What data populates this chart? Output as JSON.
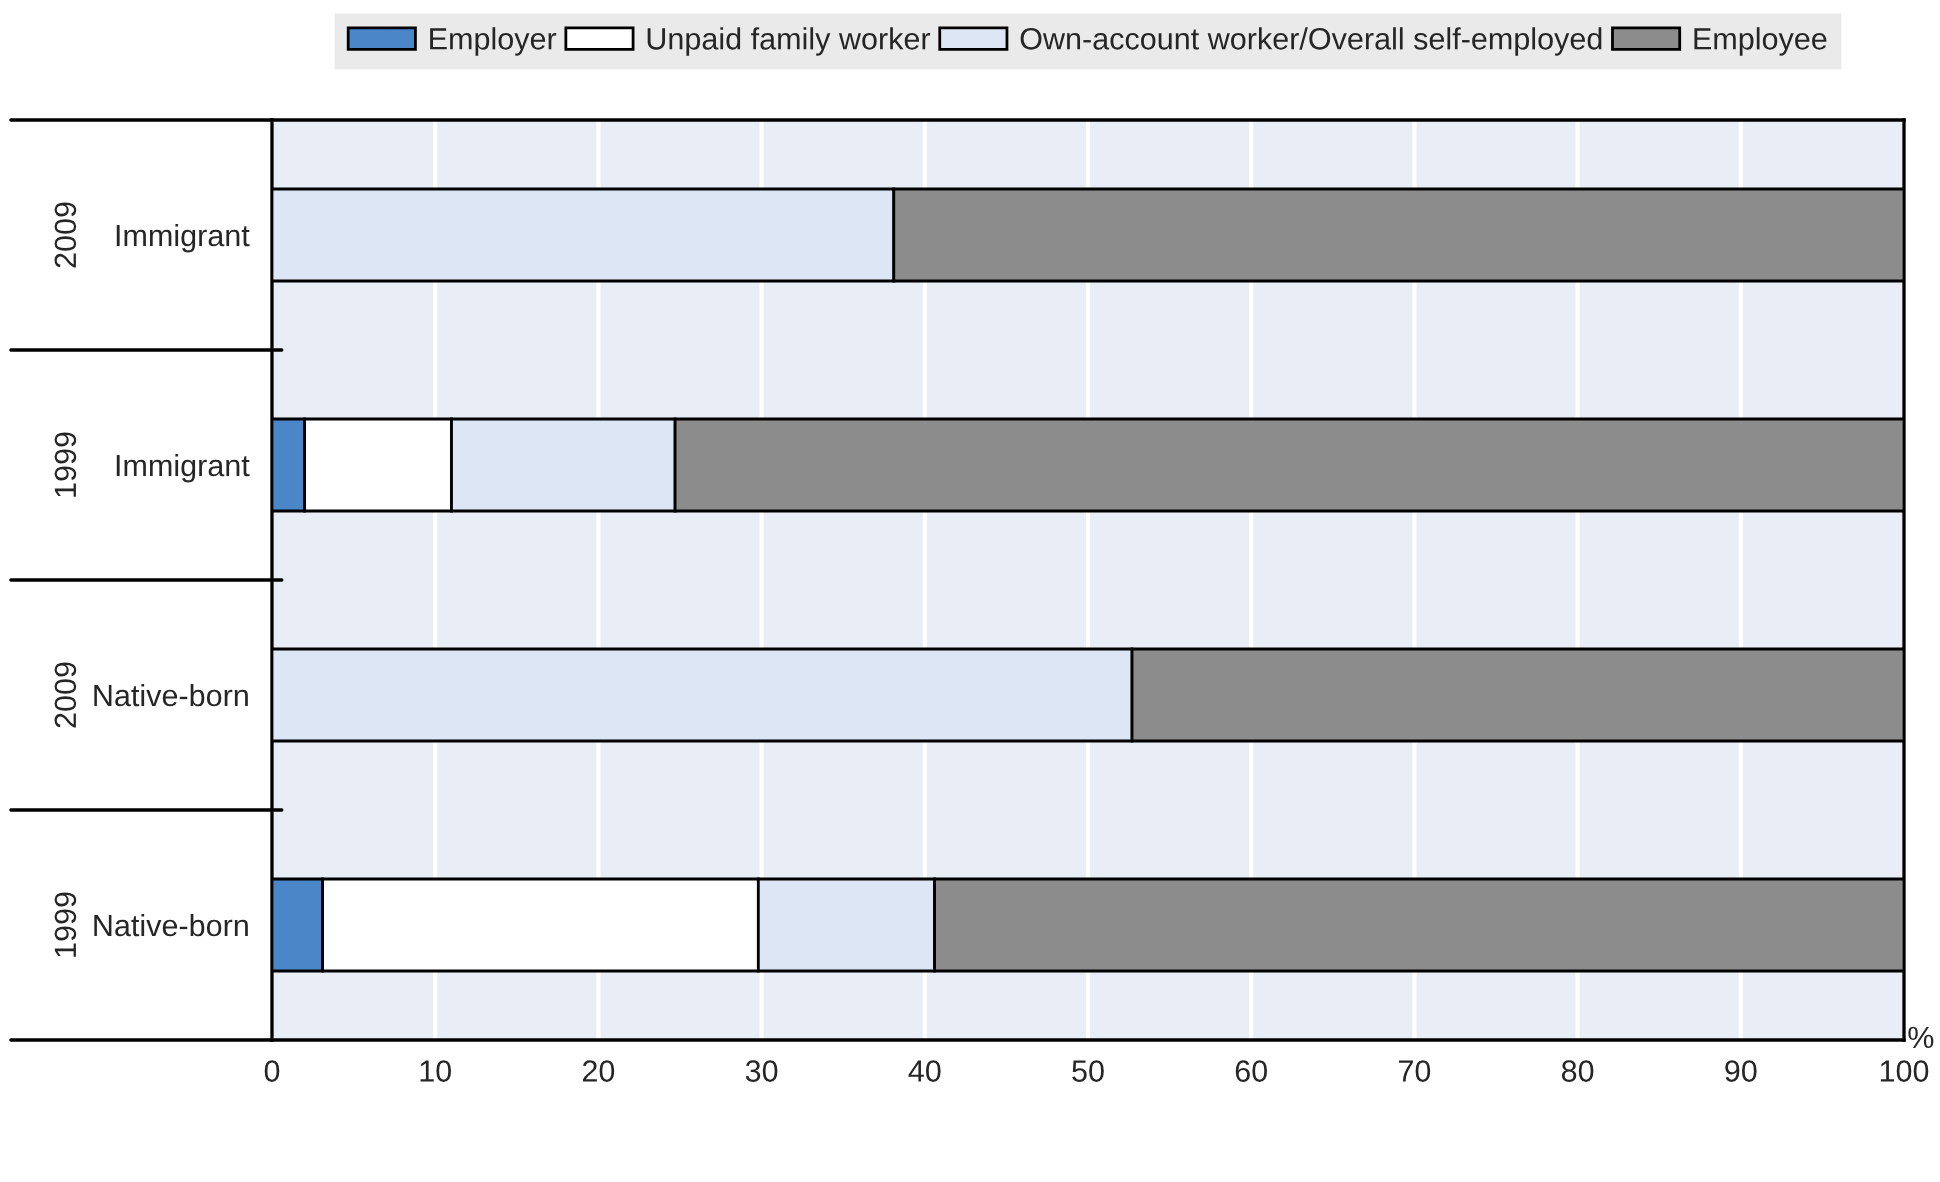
{
  "chart_data": {
    "type": "bar",
    "orientation": "horizontal",
    "stacked": true,
    "xlabel": "%",
    "categories": [
      "Immigrant",
      "Immigrant",
      "Native-born",
      "Native-born"
    ],
    "annotations": [
      "2009",
      "1999",
      "2009",
      "1999"
    ],
    "series": [
      {
        "name": "Employer",
        "color": "#4a86c8",
        "values": [
          0,
          2.0,
          0,
          3.1
        ]
      },
      {
        "name": "Unpaid family worker",
        "color": "#ffffff",
        "values": [
          0,
          9.0,
          0,
          26.7
        ]
      },
      {
        "name": "Own-account worker/Overall self-employed",
        "color": "#dce6f4",
        "values": [
          38.1,
          13.7,
          52.7,
          10.8
        ]
      },
      {
        "name": "Employee",
        "color": "#8c8c8c",
        "values": [
          61.9,
          75.3,
          47.3,
          59.4
        ]
      }
    ],
    "xlim": [
      0,
      100
    ],
    "xticks": [
      0,
      10,
      20,
      30,
      40,
      50,
      60,
      70,
      80,
      90,
      100
    ],
    "grid": "x",
    "legend": "top"
  }
}
